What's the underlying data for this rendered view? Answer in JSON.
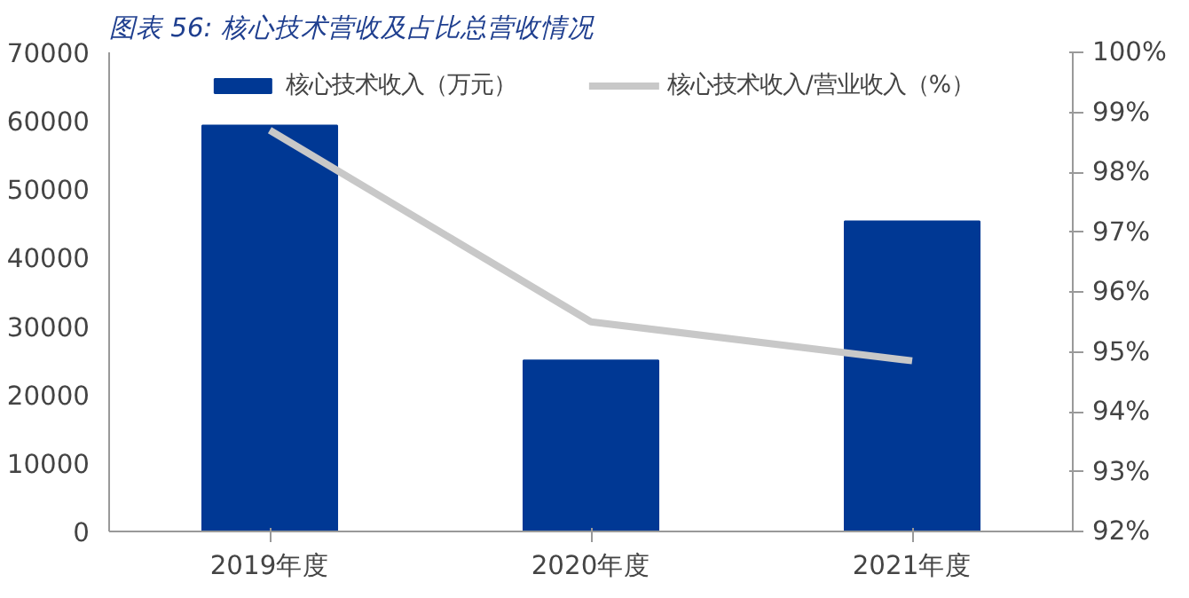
{
  "chart_data": {
    "type": "bar",
    "title": "图表 56:  核心技术营收及占比总营收情况",
    "categories": [
      "2019年度",
      "2020年度",
      "2021年度"
    ],
    "series": [
      {
        "name": "核心技术收入（万元）",
        "color": "#003894",
        "values": [
          59300,
          25000,
          45300
        ]
      },
      {
        "name": "核心技术收入/营业收入（%）",
        "type": "line",
        "axis": "y2",
        "color": "#c8c8c8",
        "values": [
          98.7,
          95.5,
          94.85
        ]
      }
    ],
    "ylim": [
      0,
      70000
    ],
    "yticks": [
      0,
      10000,
      20000,
      30000,
      40000,
      50000,
      60000,
      70000
    ],
    "y2lim": [
      92,
      100
    ],
    "y2ticks": [
      {
        "value": 92,
        "label": "92%"
      },
      {
        "value": 93,
        "label": "93%"
      },
      {
        "value": 94,
        "label": "94%"
      },
      {
        "value": 95,
        "label": "95%"
      },
      {
        "value": 96,
        "label": "96%"
      },
      {
        "value": 97,
        "label": "97%"
      },
      {
        "value": 98,
        "label": "98%"
      },
      {
        "value": 99,
        "label": "99%"
      },
      {
        "value": 100,
        "label": "100%"
      }
    ],
    "grid": false,
    "legend": "top",
    "marker": "none",
    "line_style": "solid"
  }
}
